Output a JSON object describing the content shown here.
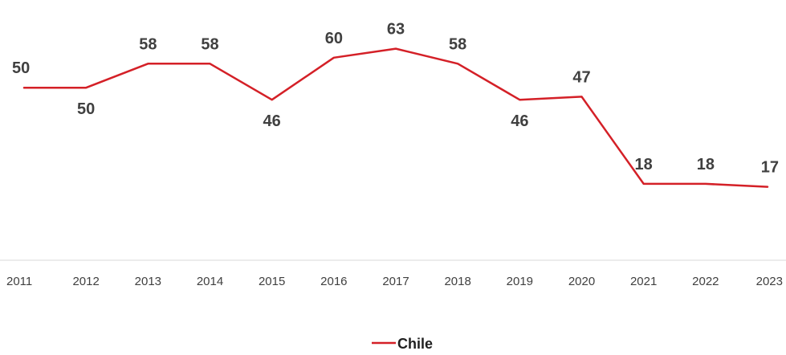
{
  "chart_data": {
    "type": "line",
    "categories": [
      "2011",
      "2012",
      "2013",
      "2014",
      "2015",
      "2016",
      "2017",
      "2018",
      "2019",
      "2020",
      "2021",
      "2022",
      "2023"
    ],
    "series": [
      {
        "name": "Chile",
        "values": [
          50,
          50,
          58,
          58,
          46,
          60,
          63,
          58,
          46,
          47,
          18,
          18,
          17
        ],
        "color": "#d42027"
      }
    ],
    "title": "",
    "xlabel": "",
    "ylabel": "",
    "data_labels": true,
    "grid": false,
    "legend_position": "bottom-center",
    "axis_line_color": "#d9d9d9",
    "text_color": "#404040"
  }
}
